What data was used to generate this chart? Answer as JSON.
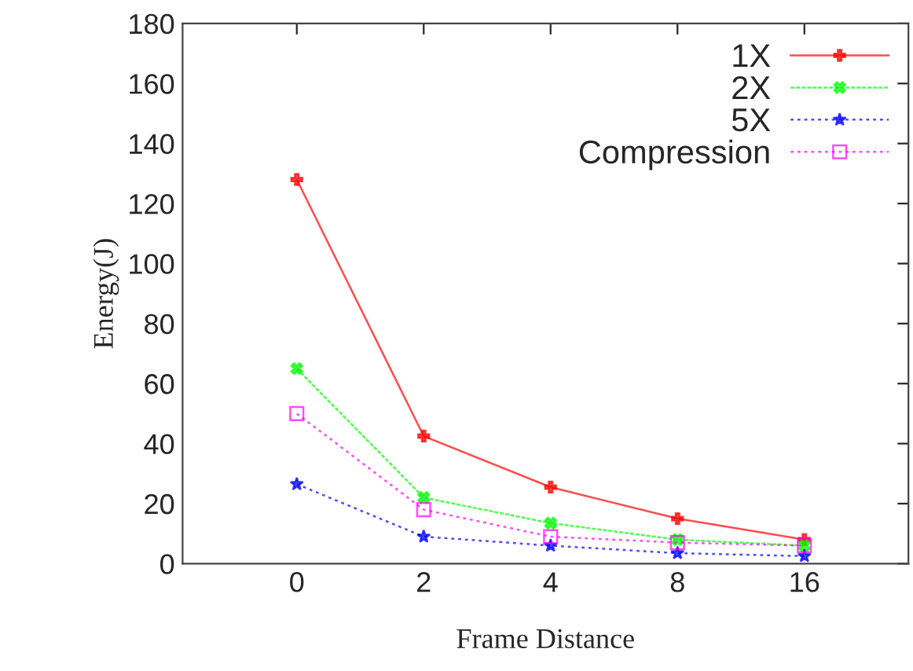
{
  "chart_data": {
    "type": "line",
    "xlabel": "Frame Distance",
    "ylabel": "Energy(J)",
    "categories": [
      "0",
      "2",
      "4",
      "8",
      "16"
    ],
    "ylim": [
      0,
      180
    ],
    "yticks": [
      0,
      20,
      40,
      60,
      80,
      100,
      120,
      140,
      160,
      180
    ],
    "grid": false,
    "legend": "top right",
    "series": [
      {
        "name": "1X",
        "color": "#ff0000",
        "marker": "plus",
        "line_style": "solid",
        "values": [
          128,
          42.5,
          25.5,
          15,
          8
        ]
      },
      {
        "name": "2X",
        "color": "#00ff00",
        "marker": "cross",
        "line_style": "dashed",
        "values": [
          65,
          22,
          13.5,
          8,
          6
        ]
      },
      {
        "name": "5X",
        "color": "#0000ff",
        "marker": "star",
        "line_style": "dotted",
        "values": [
          26.5,
          9,
          6,
          3.5,
          2.5
        ]
      },
      {
        "name": "Compression",
        "color": "#ff00ff",
        "marker": "square",
        "line_style": "dotted",
        "values": [
          50,
          18,
          9,
          7,
          6
        ]
      }
    ]
  }
}
